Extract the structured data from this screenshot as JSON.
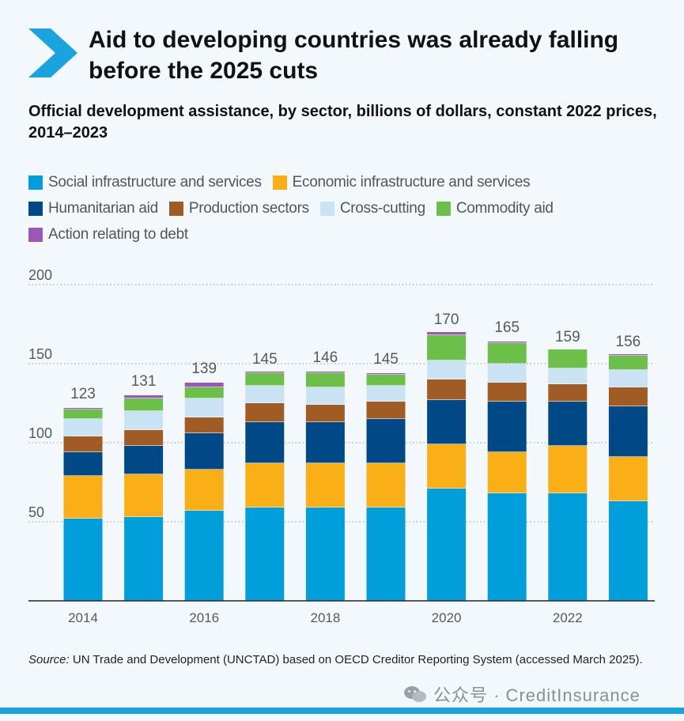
{
  "title": "Aid to developing countries was already falling before the 2025 cuts",
  "subtitle": "Official development assistance, by sector, billions of dollars, constant 2022 prices, 2014–2023",
  "legend": [
    [
      "Social infrastructure and services",
      "Economic infrastructure and services"
    ],
    [
      "Humanitarian aid",
      "Production sectors",
      "Cross-cutting",
      "Commodity aid"
    ],
    [
      "Action relating to debt"
    ]
  ],
  "source_label": "Source:",
  "source_text": " UN Trade and Development (UNCTAD) based on OECD Creditor Reporting System (accessed March 2025).",
  "watermark": "公众号 · CreditInsurance",
  "colors": {
    "background": "#f3f8fc",
    "accent": "#1aa3dc",
    "axis_text": "#595959",
    "gridline": "#9a9a9a"
  },
  "chart_data": {
    "type": "bar",
    "stacked": true,
    "categories": [
      "2014",
      "2015",
      "2016",
      "2017",
      "2018",
      "2019",
      "2020",
      "2021",
      "2022",
      "2023"
    ],
    "x_tick_labels": [
      "2014",
      "",
      "2016",
      "",
      "2018",
      "",
      "2020",
      "",
      "2022",
      ""
    ],
    "y_ticks": [
      50,
      100,
      150,
      200
    ],
    "ylim": [
      0,
      200
    ],
    "grid": true,
    "legend_position": "top",
    "xlabel": "",
    "ylabel": "",
    "totals": [
      123,
      131,
      139,
      145,
      146,
      145,
      170,
      165,
      159,
      156
    ],
    "series": [
      {
        "name": "Social infrastructure and services",
        "color": "#009edb",
        "values": [
          52,
          53,
          57,
          59,
          59,
          59,
          71,
          68,
          68,
          63
        ]
      },
      {
        "name": "Economic infrastructure and services",
        "color": "#fbaf17",
        "values": [
          27,
          27,
          26,
          28,
          28,
          28,
          28,
          26,
          30,
          28
        ]
      },
      {
        "name": "Humanitarian aid",
        "color": "#004987",
        "values": [
          15,
          18,
          23,
          26,
          26,
          28,
          28,
          32,
          28,
          32
        ]
      },
      {
        "name": "Production sectors",
        "color": "#a05c24",
        "values": [
          10,
          10,
          10,
          12,
          11,
          11,
          13,
          12,
          11,
          12
        ]
      },
      {
        "name": "Cross-cutting",
        "color": "#c9e3f4",
        "values": [
          11,
          12,
          12,
          11,
          11,
          10,
          12,
          12,
          10,
          11
        ]
      },
      {
        "name": "Commodity aid",
        "color": "#6cc04a",
        "values": [
          6,
          8,
          7,
          8,
          9,
          7,
          16,
          13,
          12,
          9
        ]
      },
      {
        "name": "Action relating to debt",
        "color": "#9b59b6",
        "values": [
          1,
          2,
          3,
          1,
          1,
          1,
          2,
          1,
          0,
          1
        ]
      }
    ]
  }
}
